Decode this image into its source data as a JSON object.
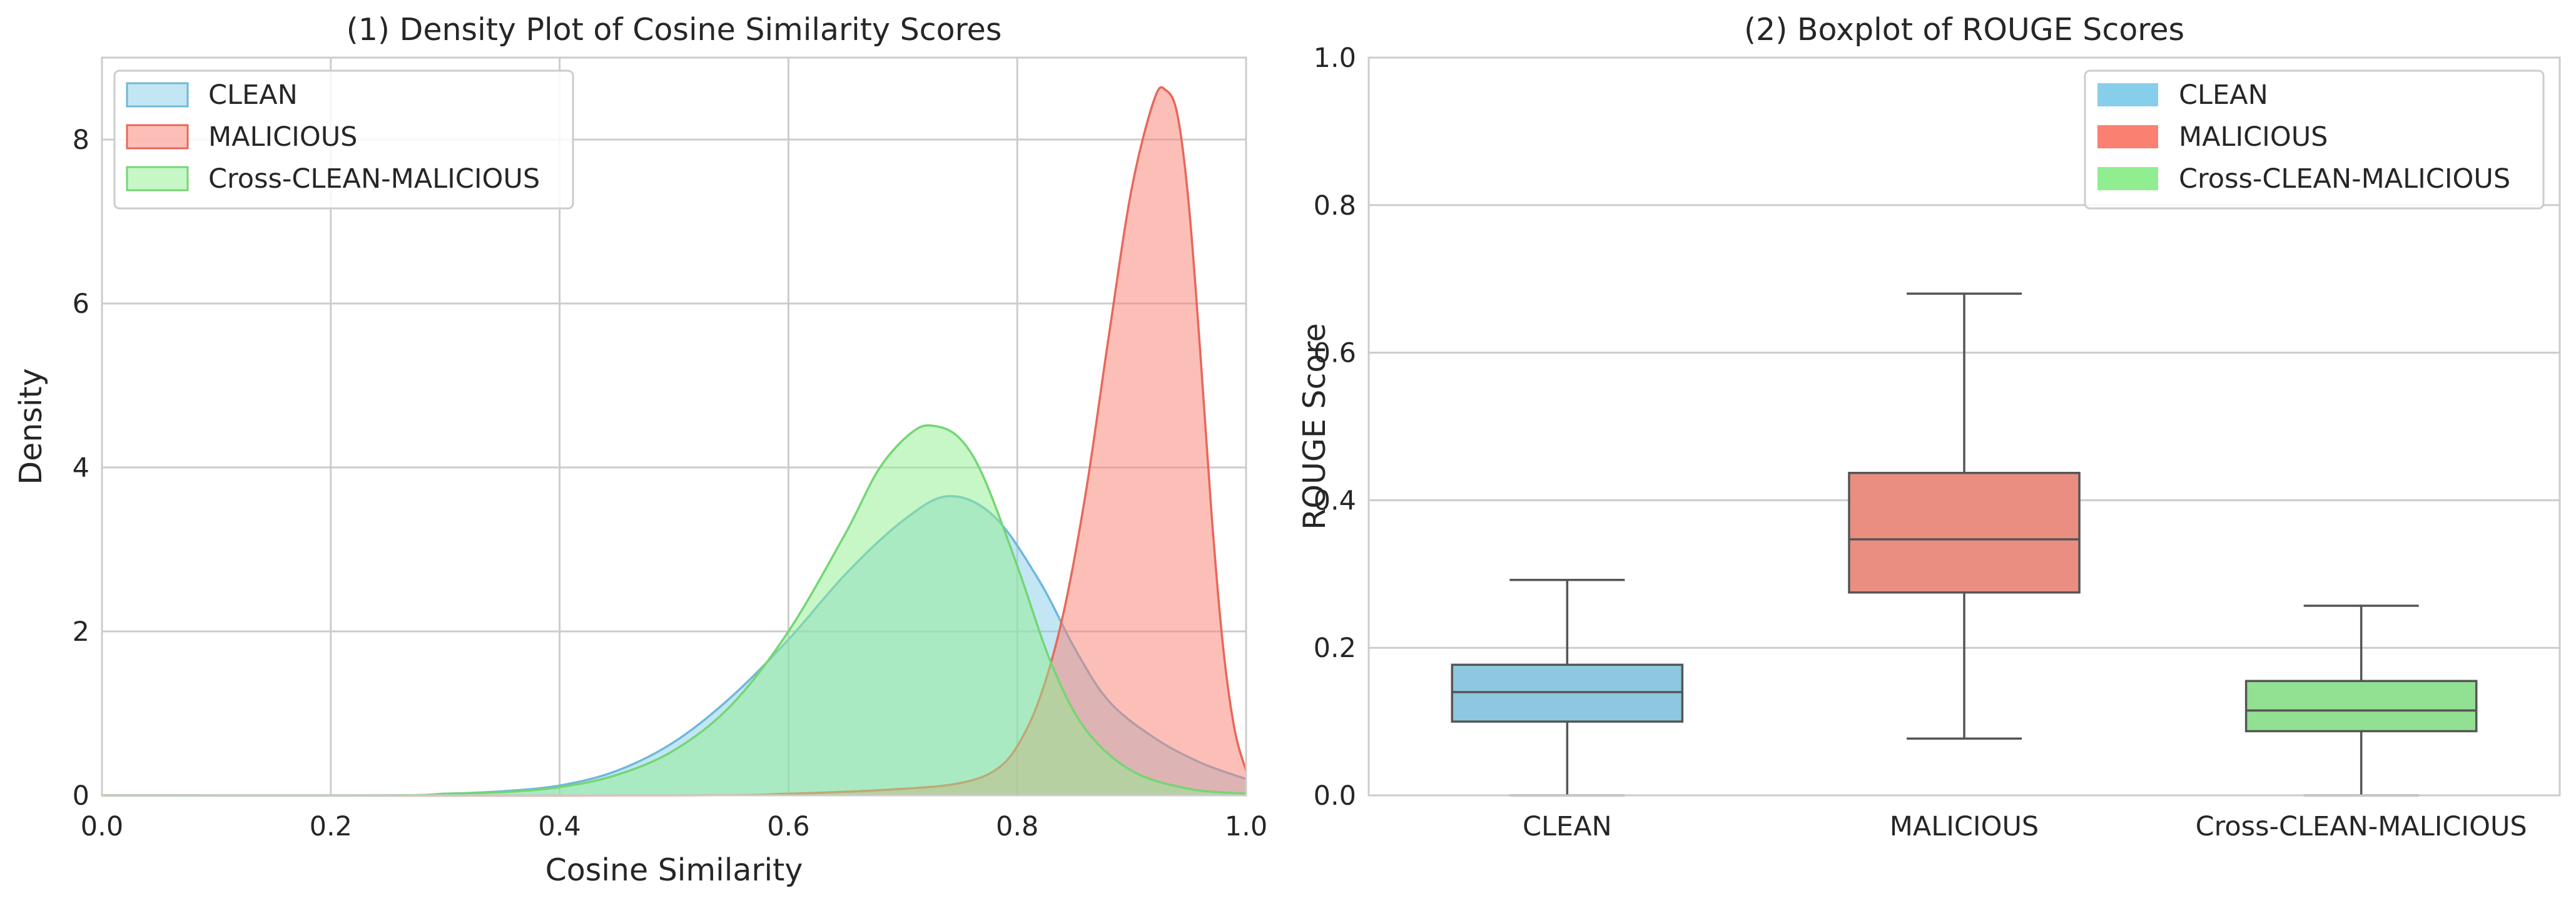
{
  "chart_data": [
    {
      "type": "area",
      "title": "(1) Density Plot of Cosine Similarity Scores",
      "xlabel": "Cosine Similarity",
      "ylabel": "Density",
      "xlim": [
        0.0,
        1.0
      ],
      "ylim": [
        0,
        9.0
      ],
      "xticks": [
        "0.0",
        "0.2",
        "0.4",
        "0.6",
        "0.8",
        "1.0"
      ],
      "yticks": [
        "0",
        "2",
        "4",
        "6",
        "8"
      ],
      "grid": true,
      "legend": "top-left",
      "series": [
        {
          "name": "CLEAN",
          "fill": "#87ceeb",
          "stroke": "#6fb8da",
          "x": [
            0.0,
            0.25,
            0.3,
            0.35,
            0.4,
            0.45,
            0.5,
            0.55,
            0.6,
            0.65,
            0.7,
            0.74,
            0.78,
            0.82,
            0.85,
            0.88,
            0.92,
            0.96,
            1.0
          ],
          "y": [
            0.0,
            0.0,
            0.02,
            0.05,
            0.12,
            0.3,
            0.65,
            1.2,
            1.9,
            2.7,
            3.35,
            3.65,
            3.4,
            2.6,
            1.8,
            1.15,
            0.7,
            0.4,
            0.2
          ]
        },
        {
          "name": "MALICIOUS",
          "fill": "#fa8072",
          "stroke": "#e8675a",
          "x": [
            0.0,
            0.5,
            0.6,
            0.7,
            0.75,
            0.78,
            0.8,
            0.82,
            0.84,
            0.86,
            0.88,
            0.9,
            0.92,
            0.93,
            0.94,
            0.95,
            0.96,
            0.97,
            0.98,
            0.99,
            1.0
          ],
          "y": [
            0.0,
            0.0,
            0.02,
            0.08,
            0.15,
            0.3,
            0.6,
            1.2,
            2.2,
            3.7,
            5.6,
            7.4,
            8.5,
            8.6,
            8.3,
            7.2,
            5.4,
            3.4,
            1.8,
            0.8,
            0.3
          ]
        },
        {
          "name": "Cross-CLEAN-MALICIOUS",
          "fill": "#90ee90",
          "stroke": "#74d674",
          "x": [
            0.0,
            0.25,
            0.3,
            0.35,
            0.4,
            0.45,
            0.5,
            0.55,
            0.6,
            0.65,
            0.68,
            0.71,
            0.73,
            0.75,
            0.77,
            0.8,
            0.83,
            0.86,
            0.9,
            0.95,
            1.0
          ],
          "y": [
            0.0,
            0.0,
            0.02,
            0.04,
            0.1,
            0.25,
            0.55,
            1.1,
            2.0,
            3.2,
            4.0,
            4.45,
            4.5,
            4.35,
            3.9,
            2.8,
            1.6,
            0.8,
            0.3,
            0.08,
            0.02
          ]
        }
      ]
    },
    {
      "type": "box",
      "title": "(2) Boxplot of ROUGE Scores",
      "xlabel": "",
      "ylabel": "ROUGE Score",
      "ylim": [
        0.0,
        1.0
      ],
      "yticks": [
        "0.0",
        "0.2",
        "0.4",
        "0.6",
        "0.8",
        "1.0"
      ],
      "grid": true,
      "legend": "top-right",
      "categories": [
        "CLEAN",
        "MALICIOUS",
        "Cross-CLEAN-MALICIOUS"
      ],
      "boxes": [
        {
          "name": "CLEAN",
          "color": "#8dc8e0",
          "legend_color": "#87ceeb",
          "whislo": 0.0,
          "q1": 0.1,
          "med": 0.14,
          "q3": 0.177,
          "whishi": 0.292
        },
        {
          "name": "MALICIOUS",
          "color": "#e98e80",
          "legend_color": "#fa8072",
          "whislo": 0.077,
          "q1": 0.275,
          "med": 0.347,
          "q3": 0.437,
          "whishi": 0.68
        },
        {
          "name": "Cross-CLEAN-MALICIOUS",
          "color": "#92e092",
          "legend_color": "#90ee90",
          "whislo": 0.0,
          "q1": 0.087,
          "med": 0.115,
          "q3": 0.155,
          "whishi": 0.257
        }
      ]
    }
  ]
}
